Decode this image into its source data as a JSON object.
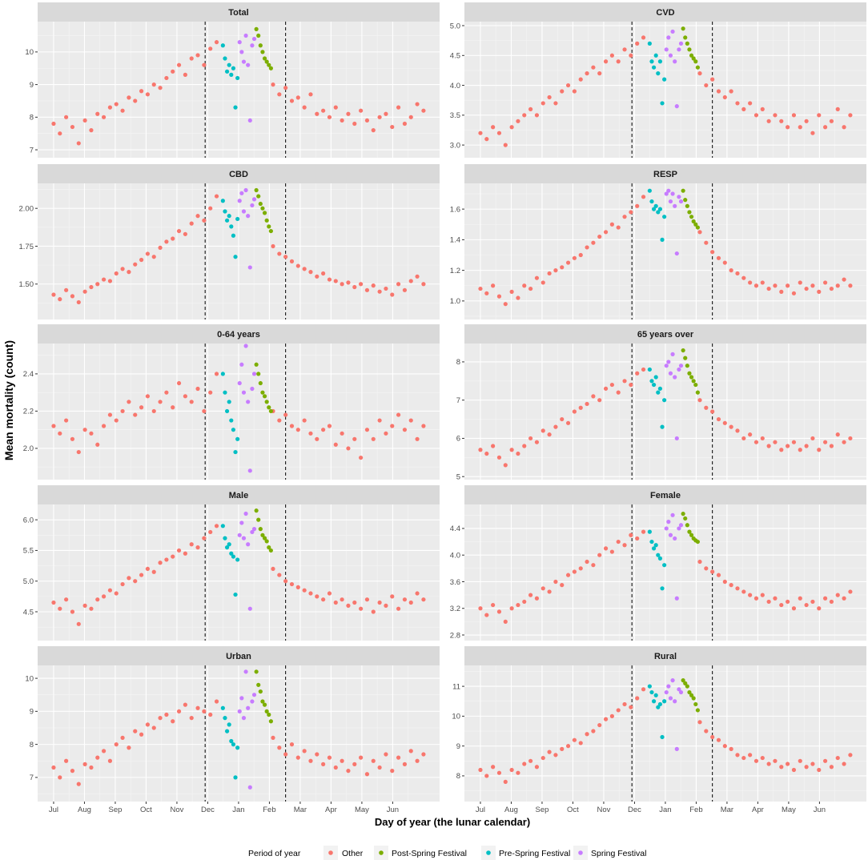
{
  "chart_data": {
    "type": "scatter",
    "xlabel": "Day of year (the lunar calendar)",
    "ylabel": "Mean mortality (count)",
    "xlim": [
      -15.3,
      369.4
    ],
    "x_ticks": [
      {
        "day": 0,
        "label": "Jul"
      },
      {
        "day": 29.5,
        "label": "Aug"
      },
      {
        "day": 59,
        "label": "Sep"
      },
      {
        "day": 88.5,
        "label": "Oct"
      },
      {
        "day": 118,
        "label": "Nov"
      },
      {
        "day": 147.5,
        "label": "Dec"
      },
      {
        "day": 177,
        "label": "Jan"
      },
      {
        "day": 206.5,
        "label": "Feb"
      },
      {
        "day": 236,
        "label": "Mar"
      },
      {
        "day": 265.5,
        "label": "Apr"
      },
      {
        "day": 295,
        "label": "May"
      },
      {
        "day": 324.5,
        "label": "Jun"
      }
    ],
    "vlines": [
      145,
      222
    ],
    "other_days": [
      0,
      6,
      12,
      18,
      24,
      30,
      36,
      42,
      48,
      54,
      60,
      66,
      72,
      78,
      84,
      90,
      96,
      102,
      108,
      114,
      120,
      126,
      132,
      138,
      144,
      150,
      156,
      210,
      216,
      222,
      228,
      234,
      240,
      246,
      252,
      258,
      264,
      270,
      276,
      282,
      288,
      294,
      300,
      306,
      312,
      318,
      324,
      330,
      336,
      342,
      348,
      354
    ],
    "pre_days": [
      162,
      164,
      166,
      168,
      170,
      172,
      174,
      176
    ],
    "spring_days": [
      178,
      180,
      182,
      184,
      186,
      188,
      190,
      192
    ],
    "post_days": [
      194,
      196,
      198,
      200,
      202,
      204,
      206,
      208
    ],
    "colors": {
      "other": "#F8766D",
      "post": "#7CAE00",
      "pre": "#00BFC4",
      "spring": "#C77CFF"
    },
    "legend": {
      "title": "Period of year",
      "items": [
        {
          "key": "other",
          "label": "Other"
        },
        {
          "key": "post",
          "label": "Post-Spring Festival"
        },
        {
          "key": "pre",
          "label": "Pre-Spring Festival"
        },
        {
          "key": "spring",
          "label": "Spring Festival"
        }
      ]
    },
    "facets": [
      {
        "key": "total",
        "title": "Total",
        "ylim": [
          6.756,
          10.93
        ],
        "yticks": [
          {
            "v": 7,
            "label": "7"
          },
          {
            "v": 8,
            "label": "8"
          },
          {
            "v": 9,
            "label": "9"
          },
          {
            "v": 10,
            "label": "10"
          }
        ],
        "other": [
          7.8,
          7.5,
          8.0,
          7.7,
          7.2,
          7.9,
          7.6,
          8.1,
          8.0,
          8.3,
          8.4,
          8.2,
          8.6,
          8.5,
          8.8,
          8.7,
          9.0,
          8.9,
          9.2,
          9.4,
          9.6,
          9.3,
          9.8,
          9.9,
          9.6,
          10.1,
          10.3,
          9.0,
          8.7,
          8.9,
          8.5,
          8.6,
          8.3,
          8.7,
          8.1,
          8.2,
          8.0,
          8.3,
          7.9,
          8.1,
          7.8,
          8.2,
          7.9,
          7.6,
          8.0,
          8.1,
          7.7,
          8.3,
          7.8,
          8.0,
          8.4,
          8.2
        ],
        "pre": [
          10.2,
          9.8,
          9.4,
          9.6,
          9.3,
          9.5,
          8.3,
          9.2
        ],
        "spring": [
          10.3,
          10.0,
          9.7,
          10.5,
          9.6,
          7.9,
          10.2,
          10.4
        ],
        "post": [
          10.7,
          10.5,
          10.2,
          10.0,
          9.8,
          9.7,
          9.6,
          9.5
        ]
      },
      {
        "key": "cvd",
        "title": "CVD",
        "ylim": [
          2.787,
          5.067
        ],
        "yticks": [
          {
            "v": 3.0,
            "label": "3.0"
          },
          {
            "v": 3.5,
            "label": "3.5"
          },
          {
            "v": 4.0,
            "label": "4.0"
          },
          {
            "v": 4.5,
            "label": "4.5"
          },
          {
            "v": 5.0,
            "label": "5.0"
          }
        ],
        "other": [
          3.2,
          3.1,
          3.3,
          3.2,
          3.0,
          3.3,
          3.4,
          3.5,
          3.6,
          3.5,
          3.7,
          3.8,
          3.7,
          3.9,
          4.0,
          3.9,
          4.1,
          4.2,
          4.3,
          4.2,
          4.4,
          4.5,
          4.4,
          4.6,
          4.5,
          4.7,
          4.8,
          4.2,
          4.0,
          4.1,
          3.9,
          3.8,
          3.9,
          3.7,
          3.6,
          3.7,
          3.5,
          3.6,
          3.4,
          3.5,
          3.4,
          3.3,
          3.5,
          3.3,
          3.4,
          3.2,
          3.5,
          3.3,
          3.4,
          3.6,
          3.3,
          3.5
        ],
        "pre": [
          4.7,
          4.4,
          4.3,
          4.5,
          4.2,
          4.4,
          3.7,
          4.1
        ],
        "spring": [
          4.6,
          4.8,
          4.5,
          4.9,
          4.4,
          3.65,
          4.6,
          4.7
        ],
        "post": [
          4.95,
          4.8,
          4.7,
          4.6,
          4.5,
          4.45,
          4.4,
          4.3
        ]
      },
      {
        "key": "cbd",
        "title": "CBD",
        "ylim": [
          1.266,
          2.165
        ],
        "yticks": [
          {
            "v": 1.5,
            "label": "1.50"
          },
          {
            "v": 1.75,
            "label": "1.75"
          },
          {
            "v": 2.0,
            "label": "2.00"
          }
        ],
        "other": [
          1.43,
          1.4,
          1.46,
          1.42,
          1.38,
          1.45,
          1.48,
          1.5,
          1.53,
          1.52,
          1.57,
          1.6,
          1.58,
          1.63,
          1.66,
          1.7,
          1.68,
          1.74,
          1.78,
          1.8,
          1.85,
          1.83,
          1.9,
          1.95,
          1.92,
          2.0,
          2.08,
          1.75,
          1.7,
          1.68,
          1.65,
          1.62,
          1.6,
          1.58,
          1.55,
          1.57,
          1.53,
          1.52,
          1.5,
          1.51,
          1.48,
          1.5,
          1.46,
          1.49,
          1.45,
          1.47,
          1.43,
          1.5,
          1.46,
          1.52,
          1.55,
          1.5
        ],
        "pre": [
          2.05,
          1.98,
          1.92,
          1.95,
          1.88,
          1.82,
          1.68,
          1.93
        ],
        "spring": [
          2.05,
          2.1,
          1.98,
          2.12,
          1.95,
          1.61,
          2.02,
          2.06
        ],
        "post": [
          2.12,
          2.08,
          2.03,
          2.0,
          1.97,
          1.92,
          1.88,
          1.85
        ]
      },
      {
        "key": "resp",
        "title": "RESP",
        "ylim": [
          0.879,
          1.768
        ],
        "yticks": [
          {
            "v": 1.0,
            "label": "1.0"
          },
          {
            "v": 1.2,
            "label": "1.2"
          },
          {
            "v": 1.4,
            "label": "1.4"
          },
          {
            "v": 1.6,
            "label": "1.6"
          }
        ],
        "other": [
          1.08,
          1.05,
          1.1,
          1.03,
          0.98,
          1.06,
          1.02,
          1.1,
          1.08,
          1.15,
          1.12,
          1.18,
          1.2,
          1.22,
          1.25,
          1.28,
          1.3,
          1.35,
          1.38,
          1.42,
          1.45,
          1.5,
          1.48,
          1.55,
          1.58,
          1.62,
          1.68,
          1.45,
          1.38,
          1.32,
          1.28,
          1.25,
          1.2,
          1.18,
          1.15,
          1.12,
          1.1,
          1.12,
          1.08,
          1.1,
          1.06,
          1.1,
          1.05,
          1.12,
          1.08,
          1.1,
          1.06,
          1.12,
          1.08,
          1.1,
          1.14,
          1.1
        ],
        "pre": [
          1.72,
          1.65,
          1.6,
          1.62,
          1.58,
          1.6,
          1.4,
          1.55
        ],
        "spring": [
          1.7,
          1.72,
          1.65,
          1.7,
          1.62,
          1.31,
          1.68,
          1.65
        ],
        "post": [
          1.72,
          1.66,
          1.62,
          1.58,
          1.55,
          1.52,
          1.5,
          1.48
        ]
      },
      {
        "key": "age-0-64",
        "title": "0-64 years",
        "ylim": [
          1.832,
          2.563
        ],
        "yticks": [
          {
            "v": 2.0,
            "label": "2.0"
          },
          {
            "v": 2.2,
            "label": "2.2"
          },
          {
            "v": 2.4,
            "label": "2.4"
          }
        ],
        "other": [
          2.12,
          2.08,
          2.15,
          2.05,
          1.98,
          2.1,
          2.08,
          2.02,
          2.12,
          2.18,
          2.15,
          2.2,
          2.25,
          2.18,
          2.22,
          2.28,
          2.2,
          2.25,
          2.3,
          2.22,
          2.35,
          2.28,
          2.25,
          2.32,
          2.2,
          2.3,
          2.4,
          2.2,
          2.15,
          2.18,
          2.12,
          2.1,
          2.15,
          2.08,
          2.05,
          2.1,
          2.12,
          2.02,
          2.08,
          2.0,
          2.05,
          1.95,
          2.1,
          2.05,
          2.15,
          2.08,
          2.12,
          2.18,
          2.1,
          2.15,
          2.05,
          2.12
        ],
        "pre": [
          2.4,
          2.3,
          2.2,
          2.25,
          2.15,
          2.1,
          1.98,
          2.05
        ],
        "spring": [
          2.35,
          2.45,
          2.3,
          2.55,
          2.25,
          1.88,
          2.32,
          2.4
        ],
        "post": [
          2.45,
          2.4,
          2.35,
          2.3,
          2.28,
          2.25,
          2.22,
          2.2
        ]
      },
      {
        "key": "age-65-over",
        "title": "65 years over",
        "ylim": [
          4.92,
          8.48
        ],
        "yticks": [
          {
            "v": 5,
            "label": "5"
          },
          {
            "v": 6,
            "label": "6"
          },
          {
            "v": 7,
            "label": "7"
          },
          {
            "v": 8,
            "label": "8"
          }
        ],
        "other": [
          5.7,
          5.6,
          5.8,
          5.5,
          5.3,
          5.7,
          5.6,
          5.8,
          6.0,
          5.9,
          6.2,
          6.1,
          6.3,
          6.5,
          6.4,
          6.7,
          6.8,
          6.9,
          7.1,
          7.0,
          7.3,
          7.4,
          7.2,
          7.5,
          7.4,
          7.7,
          7.8,
          7.0,
          6.8,
          6.7,
          6.5,
          6.4,
          6.3,
          6.2,
          6.0,
          6.1,
          5.9,
          6.0,
          5.8,
          5.9,
          5.7,
          5.8,
          5.9,
          5.7,
          5.8,
          6.0,
          5.7,
          5.9,
          5.8,
          6.1,
          5.9,
          6.0
        ],
        "pre": [
          7.8,
          7.5,
          7.4,
          7.6,
          7.2,
          7.3,
          6.3,
          7.0
        ],
        "spring": [
          7.9,
          8.0,
          7.7,
          8.2,
          7.6,
          6.0,
          7.8,
          7.9
        ],
        "post": [
          8.3,
          8.1,
          7.9,
          7.7,
          7.6,
          7.5,
          7.4,
          7.2
        ]
      },
      {
        "key": "male",
        "title": "Male",
        "ylim": [
          4.03,
          6.25
        ],
        "yticks": [
          {
            "v": 4.5,
            "label": "4.5"
          },
          {
            "v": 5.0,
            "label": "5.0"
          },
          {
            "v": 5.5,
            "label": "5.5"
          },
          {
            "v": 6.0,
            "label": "6.0"
          }
        ],
        "other": [
          4.65,
          4.55,
          4.7,
          4.5,
          4.3,
          4.6,
          4.55,
          4.7,
          4.75,
          4.85,
          4.8,
          4.95,
          5.05,
          5.0,
          5.1,
          5.2,
          5.15,
          5.3,
          5.35,
          5.4,
          5.5,
          5.45,
          5.6,
          5.55,
          5.7,
          5.8,
          5.9,
          5.2,
          5.1,
          5.0,
          4.95,
          4.9,
          4.85,
          4.8,
          4.75,
          4.7,
          4.8,
          4.65,
          4.7,
          4.6,
          4.65,
          4.55,
          4.7,
          4.5,
          4.65,
          4.6,
          4.75,
          4.55,
          4.7,
          4.65,
          4.8,
          4.7
        ],
        "pre": [
          5.9,
          5.7,
          5.55,
          5.6,
          5.45,
          5.4,
          4.78,
          5.35
        ],
        "spring": [
          5.75,
          5.95,
          5.7,
          6.1,
          5.6,
          4.55,
          5.8,
          5.85
        ],
        "post": [
          6.15,
          6.0,
          5.85,
          5.75,
          5.7,
          5.65,
          5.55,
          5.5
        ]
      },
      {
        "key": "female",
        "title": "Female",
        "ylim": [
          2.716,
          4.76
        ],
        "yticks": [
          {
            "v": 2.8,
            "label": "2.8"
          },
          {
            "v": 3.2,
            "label": "3.2"
          },
          {
            "v": 3.6,
            "label": "3.6"
          },
          {
            "v": 4.0,
            "label": "4.0"
          },
          {
            "v": 4.4,
            "label": "4.4"
          }
        ],
        "other": [
          3.2,
          3.1,
          3.25,
          3.15,
          3.0,
          3.2,
          3.25,
          3.3,
          3.4,
          3.35,
          3.5,
          3.45,
          3.6,
          3.55,
          3.7,
          3.75,
          3.8,
          3.9,
          3.85,
          4.0,
          4.1,
          4.05,
          4.2,
          4.15,
          4.3,
          4.25,
          4.35,
          3.9,
          3.8,
          3.75,
          3.7,
          3.6,
          3.55,
          3.5,
          3.45,
          3.4,
          3.35,
          3.4,
          3.3,
          3.35,
          3.25,
          3.3,
          3.2,
          3.35,
          3.25,
          3.3,
          3.2,
          3.35,
          3.3,
          3.4,
          3.35,
          3.45
        ],
        "pre": [
          4.35,
          4.2,
          4.1,
          4.15,
          4.0,
          3.95,
          3.5,
          3.85
        ],
        "spring": [
          4.4,
          4.5,
          4.3,
          4.6,
          4.25,
          3.35,
          4.4,
          4.45
        ],
        "post": [
          4.62,
          4.55,
          4.45,
          4.35,
          4.3,
          4.25,
          4.22,
          4.2
        ]
      },
      {
        "key": "urban",
        "title": "Urban",
        "ylim": [
          6.27,
          10.39
        ],
        "yticks": [
          {
            "v": 7,
            "label": "7"
          },
          {
            "v": 8,
            "label": "8"
          },
          {
            "v": 9,
            "label": "9"
          },
          {
            "v": 10,
            "label": "10"
          }
        ],
        "other": [
          7.3,
          7.0,
          7.5,
          7.2,
          6.8,
          7.4,
          7.3,
          7.6,
          7.8,
          7.5,
          8.0,
          8.2,
          7.9,
          8.4,
          8.3,
          8.6,
          8.5,
          8.8,
          8.9,
          8.7,
          9.0,
          9.2,
          8.8,
          9.1,
          9.0,
          8.9,
          9.3,
          8.2,
          7.9,
          7.7,
          8.0,
          7.6,
          7.8,
          7.5,
          7.7,
          7.4,
          7.6,
          7.3,
          7.5,
          7.2,
          7.4,
          7.6,
          7.1,
          7.5,
          7.3,
          7.7,
          7.2,
          7.6,
          7.4,
          7.8,
          7.5,
          7.7
        ],
        "pre": [
          9.1,
          8.8,
          8.4,
          8.6,
          8.1,
          8.0,
          7.0,
          7.9
        ],
        "spring": [
          9.0,
          9.4,
          8.8,
          10.2,
          9.1,
          6.7,
          9.3,
          9.5
        ],
        "post": [
          10.2,
          9.8,
          9.6,
          9.3,
          9.2,
          9.0,
          8.9,
          8.7
        ]
      },
      {
        "key": "rural",
        "title": "Rural",
        "ylim": [
          7.14,
          11.7
        ],
        "yticks": [
          {
            "v": 8,
            "label": "8"
          },
          {
            "v": 9,
            "label": "9"
          },
          {
            "v": 10,
            "label": "10"
          },
          {
            "v": 11,
            "label": "11"
          }
        ],
        "other": [
          8.2,
          8.0,
          8.3,
          8.1,
          7.8,
          8.2,
          8.1,
          8.4,
          8.5,
          8.3,
          8.6,
          8.8,
          8.7,
          8.9,
          9.0,
          9.2,
          9.1,
          9.4,
          9.5,
          9.7,
          9.9,
          10.0,
          10.2,
          10.4,
          10.3,
          10.6,
          10.9,
          9.8,
          9.5,
          9.3,
          9.2,
          9.0,
          8.9,
          8.7,
          8.6,
          8.7,
          8.5,
          8.6,
          8.4,
          8.5,
          8.3,
          8.4,
          8.2,
          8.5,
          8.3,
          8.4,
          8.2,
          8.5,
          8.3,
          8.6,
          8.4,
          8.7
        ],
        "pre": [
          11.0,
          10.8,
          10.5,
          10.7,
          10.3,
          10.4,
          9.3,
          10.5
        ],
        "spring": [
          10.8,
          11.0,
          10.6,
          11.2,
          10.5,
          8.9,
          10.9,
          10.8
        ],
        "post": [
          11.2,
          11.1,
          11.0,
          10.8,
          10.7,
          10.6,
          10.4,
          10.2
        ]
      }
    ]
  }
}
